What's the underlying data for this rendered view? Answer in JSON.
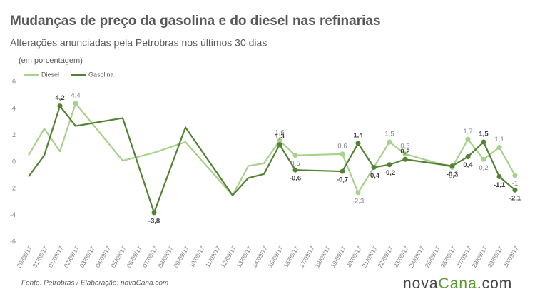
{
  "chart_data": {
    "type": "line",
    "title": "Mudanças de preço da gasolina e do diesel nas refinarias",
    "subtitle": "Alterações anunciadas pela Petrobras nos últimos 30 dias",
    "unit_note": "(em porcentagem)",
    "source": "Fonte: Petrobras / Elaboração: novaCana.com",
    "logo": {
      "part1": "nova",
      "part2": "Cana",
      "part3": ".com"
    },
    "categories": [
      "30/08/17",
      "31/08/17",
      "01/09/17",
      "02/09/17",
      "03/09/17",
      "04/09/17",
      "05/09/17",
      "06/09/17",
      "07/09/17",
      "08/09/17",
      "09/09/17",
      "10/09/17",
      "11/09/17",
      "12/09/17",
      "13/09/17",
      "14/09/17",
      "15/09/17",
      "16/09/17",
      "17/09/17",
      "18/09/17",
      "19/09/17",
      "20/09/17",
      "21/09/17",
      "22/09/17",
      "23/09/17",
      "24/09/17",
      "25/09/17",
      "26/09/17",
      "27/09/17",
      "28/09/17",
      "29/09/17",
      "30/09/17"
    ],
    "ylim": [
      -6,
      6
    ],
    "yticks": [
      -6,
      -4,
      -2,
      0,
      2,
      4,
      6
    ],
    "grid": false,
    "legend": "top-left",
    "series": [
      {
        "name": "Diesel",
        "color": "#a9d18e",
        "x": [
          "30/08/17",
          "31/08/17",
          "01/09/17",
          "02/09/17",
          "05/09/17",
          "07/09/17",
          "09/09/17",
          "12/09/17",
          "13/09/17",
          "14/09/17",
          "15/09/17",
          "16/09/17",
          "19/09/17",
          "20/09/17",
          "22/09/17",
          "23/09/17",
          "26/09/17",
          "27/09/17",
          "28/09/17",
          "29/09/17",
          "30/09/17"
        ],
        "values": [
          0.5,
          2.5,
          0.8,
          4.4,
          0.1,
          0.7,
          1.5,
          -2.5,
          -0.3,
          -0.1,
          1.6,
          0.5,
          0.6,
          -2.3,
          1.5,
          0.6,
          -0.4,
          1.7,
          0.2,
          1.1,
          -1
        ],
        "value_labels": [
          null,
          null,
          null,
          "4,4",
          null,
          null,
          null,
          null,
          null,
          null,
          "1,6",
          "0,5",
          "0,6",
          "-2,3",
          "1,5",
          "0,6",
          "-0,4",
          "1,7",
          "0,2",
          "1,1",
          "-1"
        ]
      },
      {
        "name": "Gasolina",
        "color": "#548235",
        "x": [
          "30/08/17",
          "31/08/17",
          "01/09/17",
          "02/09/17",
          "05/09/17",
          "07/09/17",
          "09/09/17",
          "12/09/17",
          "13/09/17",
          "14/09/17",
          "15/09/17",
          "16/09/17",
          "19/09/17",
          "20/09/17",
          "21/09/17",
          "22/09/17",
          "23/09/17",
          "26/09/17",
          "27/09/17",
          "28/09/17",
          "29/09/17",
          "30/09/17"
        ],
        "values": [
          -1.1,
          0.5,
          4.2,
          2.7,
          3.3,
          -3.8,
          2.6,
          -2.5,
          -1.2,
          -0.9,
          1.3,
          -0.6,
          -0.7,
          1.4,
          -0.4,
          -0.2,
          0.2,
          -0.3,
          0.4,
          1.5,
          -1.1,
          -2.1
        ],
        "value_labels": [
          null,
          null,
          "4,2",
          null,
          null,
          "-3,8",
          null,
          null,
          null,
          null,
          "1,3",
          "-0,6",
          "-0,7",
          "1,4",
          "-0,4",
          "-0,2",
          "0,2",
          "-0,3",
          "0,4",
          "1,5",
          "-1,1",
          "-2,1"
        ]
      }
    ]
  }
}
